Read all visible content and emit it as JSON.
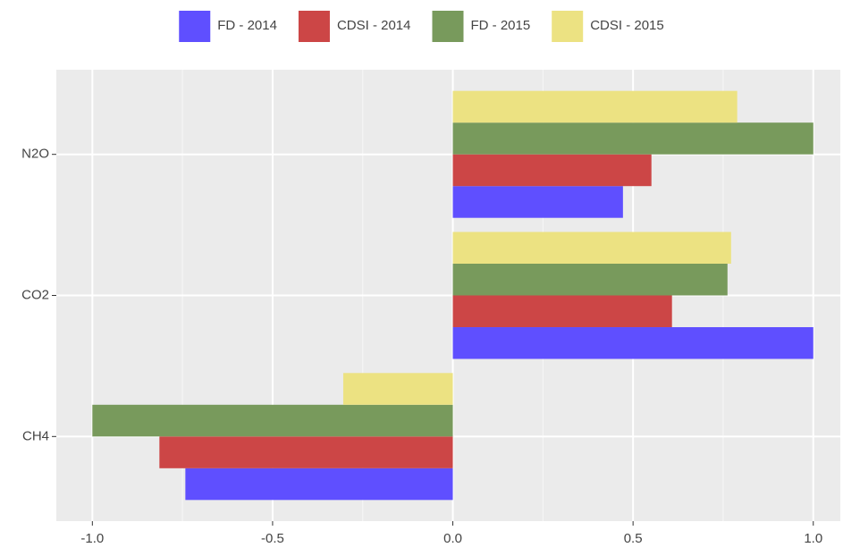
{
  "chart_data": {
    "type": "hbar",
    "categories": [
      "CH4",
      "CO2",
      "N2O"
    ],
    "series": [
      {
        "name": "FD - 2014",
        "color": "#5f4fff",
        "values": [
          -0.742,
          1.0,
          0.472
        ]
      },
      {
        "name": "CDSI - 2014",
        "color": "#cc4646",
        "values": [
          -0.814,
          0.608,
          0.551
        ]
      },
      {
        "name": "FD - 2015",
        "color": "#789a5c",
        "values": [
          -1.0,
          0.762,
          1.0
        ]
      },
      {
        "name": "CDSI - 2015",
        "color": "#ece282",
        "values": [
          -0.304,
          0.772,
          0.789
        ]
      }
    ],
    "xlim": [
      -1.1,
      1.075
    ],
    "xticks": [
      {
        "value": -1,
        "label": "-1.0"
      },
      -0.5,
      {
        "value": 0,
        "label": "0.0"
      },
      0.5,
      {
        "value": 1,
        "label": "1.0"
      }
    ],
    "xminor": [
      -0.75,
      -0.25,
      0.25,
      0.75
    ],
    "grid": true,
    "legend": "top"
  }
}
